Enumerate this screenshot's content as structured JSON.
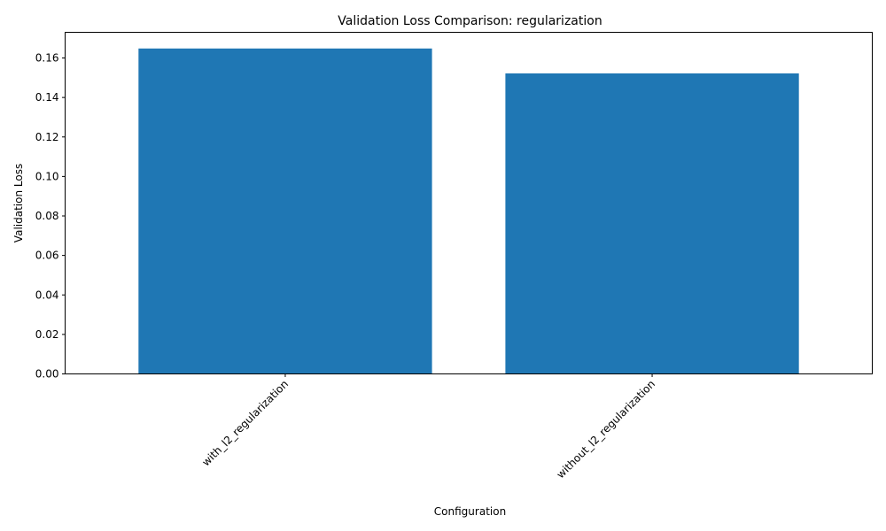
{
  "chart_data": {
    "type": "bar",
    "title": "Validation Loss Comparison: regularization",
    "xlabel": "Configuration",
    "ylabel": "Validation Loss",
    "categories": [
      "with_l2_regularization",
      "without_l2_regularization"
    ],
    "values": [
      0.1648,
      0.1522
    ],
    "ylim": [
      0,
      0.173
    ],
    "yticks": [
      0.0,
      0.02,
      0.04,
      0.06,
      0.08,
      0.1,
      0.12,
      0.14,
      0.16
    ],
    "ytick_labels": [
      "0.00",
      "0.02",
      "0.04",
      "0.06",
      "0.08",
      "0.10",
      "0.12",
      "0.14",
      "0.16"
    ],
    "xtick_rotation": 45,
    "grid": false,
    "bar_color": "#1f77b4"
  }
}
